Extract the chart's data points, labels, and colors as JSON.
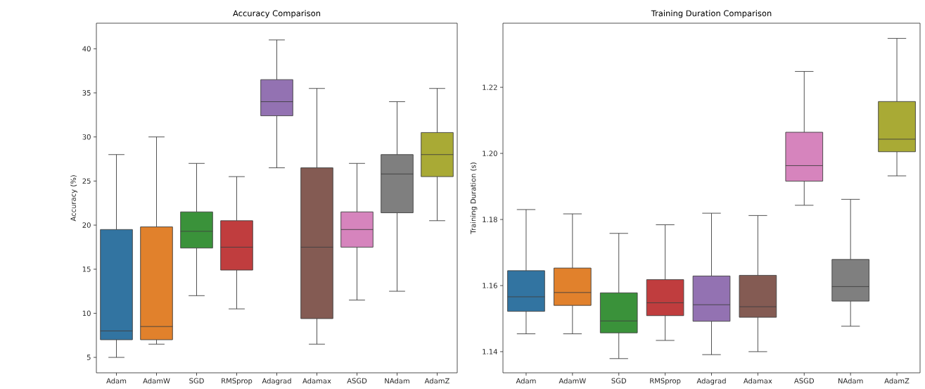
{
  "chart_data": [
    {
      "type": "box",
      "title": "Accuracy Comparison",
      "ylabel": "Accuracy (%)",
      "categories": [
        "Adam",
        "AdamW",
        "SGD",
        "RMSprop",
        "Adagrad",
        "Adamax",
        "ASGD",
        "NAdam",
        "AdamZ"
      ],
      "colors": [
        "#3274a1",
        "#e1812c",
        "#3a923a",
        "#c03d3e",
        "#9372b2",
        "#845b53",
        "#d684bd",
        "#7f7f7f",
        "#a9aa35"
      ],
      "boxes": [
        {
          "low": 5,
          "q1": 7,
          "median": 8,
          "q3": 19.5,
          "high": 28
        },
        {
          "low": 6.5,
          "q1": 7,
          "median": 8.5,
          "q3": 19.8,
          "high": 30
        },
        {
          "low": 12,
          "q1": 17.4,
          "median": 19.3,
          "q3": 21.5,
          "high": 27
        },
        {
          "low": 10.5,
          "q1": 14.9,
          "median": 17.5,
          "q3": 20.5,
          "high": 25.5
        },
        {
          "low": 26.5,
          "q1": 32.4,
          "median": 34,
          "q3": 36.5,
          "high": 41
        },
        {
          "low": 6.5,
          "q1": 9.4,
          "median": 17.5,
          "q3": 26.5,
          "high": 35.5
        },
        {
          "low": 11.5,
          "q1": 17.5,
          "median": 19.5,
          "q3": 21.5,
          "high": 27
        },
        {
          "low": 12.5,
          "q1": 21.4,
          "median": 25.8,
          "q3": 28,
          "high": 34
        },
        {
          "low": 20.5,
          "q1": 25.5,
          "median": 28,
          "q3": 30.5,
          "high": 35.5
        }
      ],
      "ylim": [
        3.25,
        42.9
      ],
      "yticks": [
        5,
        10,
        15,
        20,
        25,
        30,
        35,
        40
      ]
    },
    {
      "type": "box",
      "title": "Training Duration Comparison",
      "ylabel": "Training Duration (s)",
      "categories": [
        "Adam",
        "AdamW",
        "SGD",
        "RMSprop",
        "Adagrad",
        "Adamax",
        "ASGD",
        "NAdam",
        "AdamZ"
      ],
      "colors": [
        "#3274a1",
        "#e1812c",
        "#3a923a",
        "#c03d3e",
        "#9372b2",
        "#845b53",
        "#d684bd",
        "#7f7f7f",
        "#a9aa35"
      ],
      "boxes": [
        {
          "low": 1.1454,
          "q1": 1.1522,
          "median": 1.1566,
          "q3": 1.1645,
          "high": 1.183
        },
        {
          "low": 1.1454,
          "q1": 1.154,
          "median": 1.1579,
          "q3": 1.1653,
          "high": 1.1817
        },
        {
          "low": 1.1379,
          "q1": 1.1457,
          "median": 1.1493,
          "q3": 1.1578,
          "high": 1.1758
        },
        {
          "low": 1.1434,
          "q1": 1.1509,
          "median": 1.1548,
          "q3": 1.1618,
          "high": 1.1784
        },
        {
          "low": 1.1391,
          "q1": 1.1492,
          "median": 1.1542,
          "q3": 1.1629,
          "high": 1.1819
        },
        {
          "low": 1.14,
          "q1": 1.1504,
          "median": 1.1536,
          "q3": 1.1631,
          "high": 1.1812
        },
        {
          "low": 1.1843,
          "q1": 1.1916,
          "median": 1.1963,
          "q3": 1.2064,
          "high": 1.2248
        },
        {
          "low": 1.1477,
          "q1": 1.1553,
          "median": 1.1597,
          "q3": 1.1679,
          "high": 1.1861
        },
        {
          "low": 1.1932,
          "q1": 1.2005,
          "median": 1.2043,
          "q3": 1.2157,
          "high": 1.2348
        }
      ],
      "ylim": [
        1.1336,
        1.2394
      ],
      "yticks": [
        1.14,
        1.16,
        1.18,
        {
          "value": 1.2,
          "label": "1.20"
        },
        1.22
      ]
    }
  ]
}
